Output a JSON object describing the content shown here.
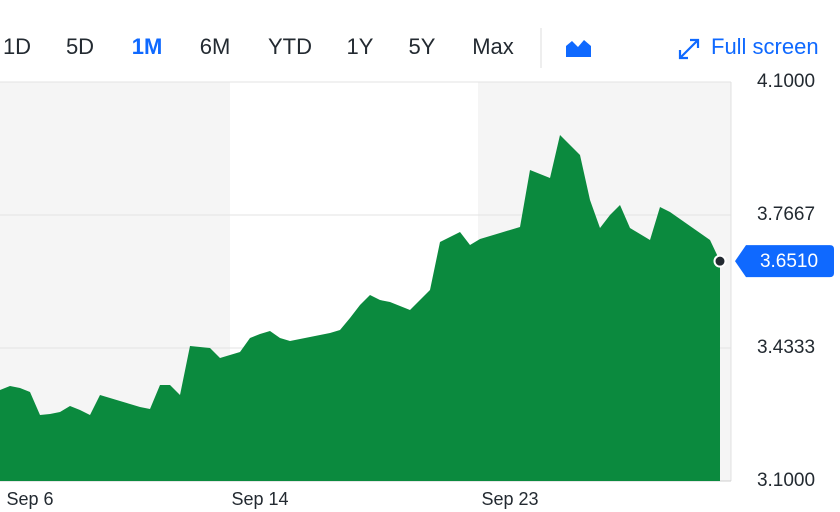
{
  "toolbar": {
    "ranges": [
      "1D",
      "5D",
      "1M",
      "6M",
      "YTD",
      "1Y",
      "5Y",
      "Max"
    ],
    "selected": "1M",
    "full_screen": "Full screen"
  },
  "chart_data": {
    "type": "area",
    "categories": [
      null,
      null,
      null,
      "Sep 6",
      null,
      null,
      null,
      null,
      null,
      null,
      null,
      null,
      null,
      null,
      null,
      null,
      null,
      null,
      null,
      null,
      null,
      null,
      null,
      null,
      null,
      null,
      "Sep 14",
      null,
      null,
      null,
      null,
      null,
      null,
      null,
      null,
      null,
      null,
      null,
      null,
      null,
      null,
      null,
      null,
      null,
      null,
      null,
      null,
      null,
      null,
      null,
      null,
      "Sep 23",
      null,
      null,
      null,
      null,
      null,
      null,
      null,
      null,
      null,
      null,
      null,
      null,
      null,
      null,
      null,
      null,
      null,
      null,
      null,
      null,
      null
    ],
    "series": [
      {
        "color": "#0b8a3e",
        "values": [
          3.3281,
          3.3381,
          3.3331,
          3.3231,
          3.2654,
          3.2679,
          3.2729,
          3.288,
          3.2779,
          3.2654,
          3.3155,
          3.308,
          3.3005,
          3.293,
          3.2855,
          3.2805,
          3.3406,
          3.3406,
          3.3155,
          3.4383,
          3.4358,
          3.4333,
          3.4083,
          3.4158,
          3.4233,
          3.4584,
          3.4684,
          3.4759,
          3.4584,
          3.4509,
          3.4559,
          3.4609,
          3.4659,
          3.4709,
          3.4784,
          3.5085,
          3.5411,
          3.5662,
          3.5536,
          3.5486,
          3.5386,
          3.5286,
          3.5536,
          3.5787,
          3.699,
          3.7115,
          3.7241,
          3.6915,
          3.7065,
          3.714,
          3.7216,
          3.7291,
          3.7366,
          3.8794,
          3.8694,
          3.8594,
          3.9672,
          3.9421,
          3.917,
          3.8043,
          3.7341,
          3.7667,
          3.7917,
          3.7341,
          3.719,
          3.704,
          3.7867,
          3.7742,
          3.7566,
          3.7391,
          3.7216,
          3.704,
          3.651
        ],
        "value_labels": [
          null,
          null,
          null,
          null,
          null,
          null,
          null,
          null,
          null,
          null,
          null,
          null,
          null,
          null,
          null,
          null,
          null,
          null,
          null,
          null,
          null,
          null,
          null,
          null,
          null,
          null,
          null,
          null,
          null,
          null,
          null,
          null,
          null,
          null,
          null,
          null,
          null,
          null,
          null,
          null,
          null,
          null,
          null,
          null,
          null,
          null,
          null,
          null,
          null,
          null,
          null,
          null,
          null,
          null,
          null,
          null,
          null,
          null,
          null,
          null,
          null,
          null,
          null,
          null,
          null,
          null,
          null,
          null,
          null,
          null,
          null,
          null,
          "3.6510"
        ]
      }
    ],
    "ylim": [
      3.1,
      4.1
    ],
    "yticks": [
      {
        "value": 3.1,
        "label": "3.1000"
      },
      {
        "value": 3.4333,
        "label": "3.4333"
      },
      {
        "value": 3.7667,
        "label": "3.7667"
      },
      {
        "value": 4.1,
        "label": "4.1000"
      }
    ],
    "grid": true
  }
}
